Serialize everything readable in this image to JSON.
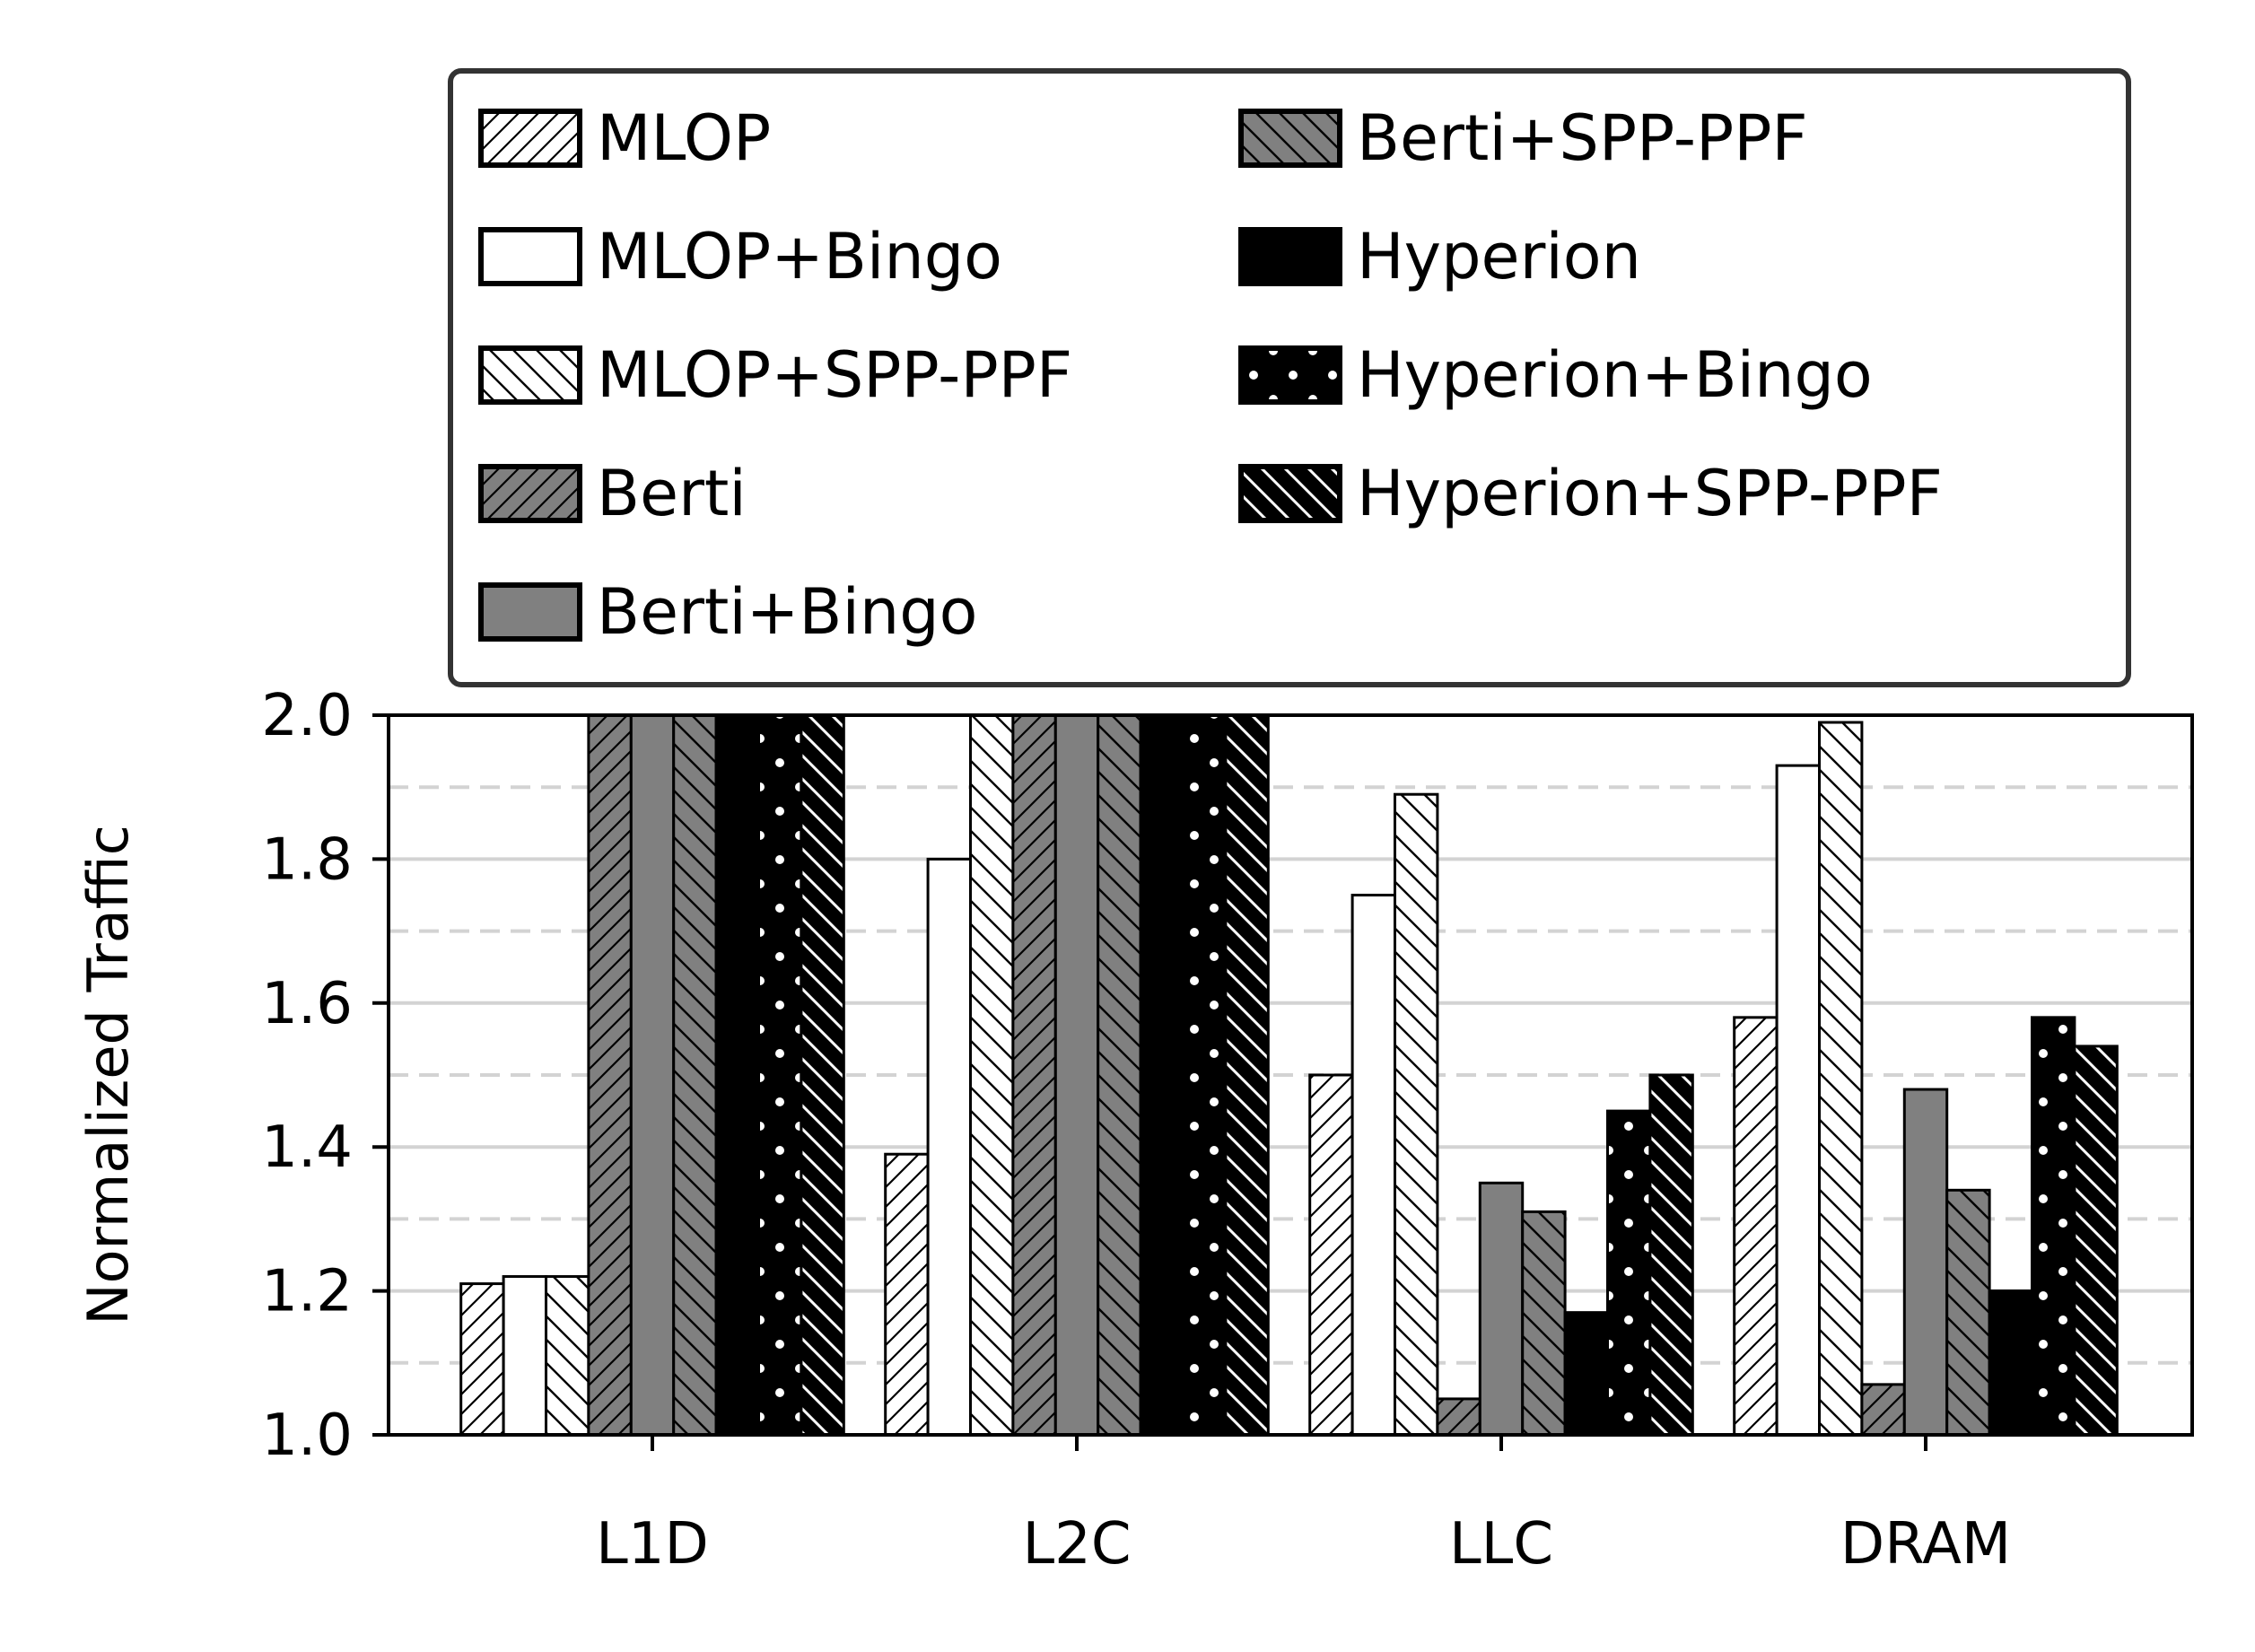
{
  "chart_data": {
    "type": "bar",
    "title": "",
    "xlabel": "",
    "ylabel": "Normalized Traffic",
    "ylim": [
      1.0,
      2.0
    ],
    "yticks": [
      "1.0",
      "1.2",
      "1.4",
      "1.6",
      "1.8",
      "2.0"
    ],
    "grid": "horizontal (solid at major ticks, dashed at 0.1 minor ticks)",
    "legend_position": "top",
    "categories": [
      "L1D",
      "L2C",
      "LLC",
      "DRAM"
    ],
    "series": [
      {
        "name": "MLOP",
        "fill": "#ffffff",
        "hatch": "diag-up",
        "hatch_color": "#000000",
        "values": [
          1.21,
          1.39,
          1.5,
          1.58
        ]
      },
      {
        "name": "MLOP+Bingo",
        "fill": "#ffffff",
        "hatch": "none",
        "hatch_color": "#000000",
        "values": [
          1.22,
          1.8,
          1.75,
          1.93
        ]
      },
      {
        "name": "MLOP+SPP-PPF",
        "fill": "#ffffff",
        "hatch": "diag-down",
        "hatch_color": "#000000",
        "values": [
          1.22,
          2.0,
          1.89,
          1.99
        ]
      },
      {
        "name": "Berti",
        "fill": "#808080",
        "hatch": "diag-up",
        "hatch_color": "#000000",
        "values": [
          2.0,
          2.0,
          1.05,
          1.07
        ]
      },
      {
        "name": "Berti+Bingo",
        "fill": "#808080",
        "hatch": "none",
        "hatch_color": "#000000",
        "values": [
          2.0,
          2.0,
          1.35,
          1.48
        ]
      },
      {
        "name": "Berti+SPP-PPF",
        "fill": "#808080",
        "hatch": "diag-down",
        "hatch_color": "#000000",
        "values": [
          2.0,
          2.0,
          1.31,
          1.34
        ]
      },
      {
        "name": "Hyperion",
        "fill": "#000000",
        "hatch": "none",
        "hatch_color": "#ffffff",
        "values": [
          2.0,
          2.0,
          1.17,
          1.2
        ]
      },
      {
        "name": "Hyperion+Bingo",
        "fill": "#000000",
        "hatch": "dots",
        "hatch_color": "#ffffff",
        "values": [
          2.0,
          2.0,
          1.45,
          1.58
        ]
      },
      {
        "name": "Hyperion+SPP-PPF",
        "fill": "#000000",
        "hatch": "diag-down",
        "hatch_color": "#ffffff",
        "values": [
          2.0,
          2.0,
          1.5,
          1.54
        ]
      }
    ]
  }
}
